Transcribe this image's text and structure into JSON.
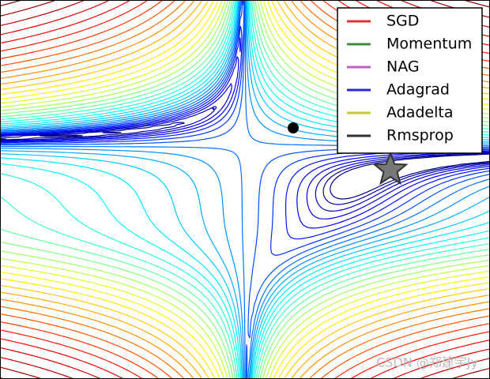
{
  "chart_data": {
    "type": "contour",
    "series": [
      {
        "name": "SGD",
        "color": "#e03232"
      },
      {
        "name": "Momentum",
        "color": "#3c8c3c"
      },
      {
        "name": "NAG",
        "color": "#bf5fbf"
      },
      {
        "name": "Adagrad",
        "color": "#2a2ad2"
      },
      {
        "name": "Adadelta",
        "color": "#c9c930"
      },
      {
        "name": "Rmsprop",
        "color": "#333333"
      }
    ],
    "legend": "upper right",
    "watermark": "CSDN @郑建宇Jy"
  }
}
